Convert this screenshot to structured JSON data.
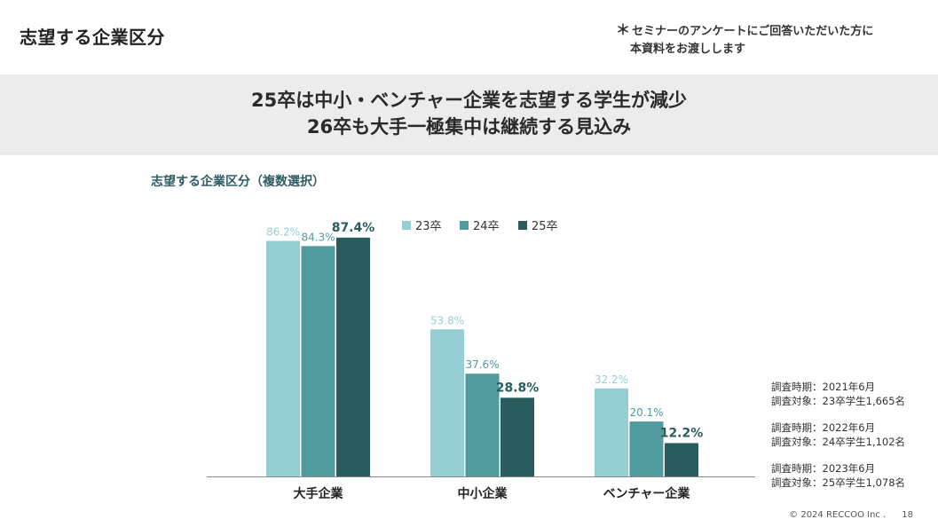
{
  "header": {
    "title": "志望する企業区分",
    "note_star": "＊",
    "note_line1": "セミナーのアンケートにご回答いただいた方に",
    "note_line2": "本資料をお渡しします"
  },
  "headline": {
    "line1": "25卒は中小・ベンチャー企業を志望する学生が減少",
    "line2": "26卒も大手一極集中は継続する見込み"
  },
  "chart_data": {
    "type": "bar",
    "title": "志望する企業区分（複数選択）",
    "categories": [
      "大手企業",
      "中小企業",
      "ベンチャー企業"
    ],
    "series": [
      {
        "name": "23卒",
        "values": [
          86.2,
          53.8,
          32.2
        ],
        "color": "#95cfd3"
      },
      {
        "name": "24卒",
        "values": [
          84.3,
          37.6,
          20.1
        ],
        "color": "#4f9b9e"
      },
      {
        "name": "25卒",
        "values": [
          87.4,
          28.8,
          12.2
        ],
        "color": "#2a5c5e"
      }
    ],
    "value_suffix": "%",
    "ylim": [
      0,
      100
    ],
    "grid": false,
    "legend": "top-center"
  },
  "survey_notes": [
    {
      "period": "調査時期：2021年6月",
      "target": "調査対象：23卒学生1,665名"
    },
    {
      "period": "調査時期：2022年6月",
      "target": "調査対象：24卒学生1,102名"
    },
    {
      "period": "調査時期：2023年6月",
      "target": "調査対象：25卒学生1,078名"
    }
  ],
  "footer": {
    "copyright": "© 2024 RECCOO Inc .",
    "page": "18"
  }
}
